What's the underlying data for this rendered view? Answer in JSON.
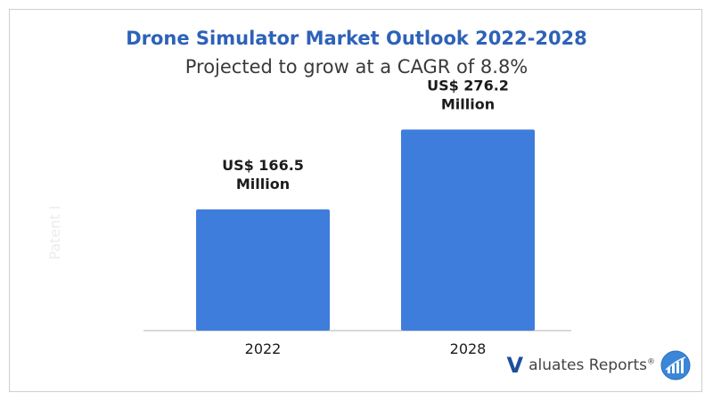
{
  "title": "Drone Simulator Market Outlook 2022-2028",
  "subtitle": "Projected to grow at a CAGR of 8.8%",
  "watermark": "Patent I",
  "logo": {
    "v": "V",
    "text": "aluates Reports",
    "reg": "®",
    "emblem_icon": "chart-globe-icon"
  },
  "colors": {
    "title": "#2d62b8",
    "bar": "#3f7ddc",
    "axis": "#b0b0b0"
  },
  "chart_data": {
    "type": "bar",
    "categories": [
      "2022",
      "2028"
    ],
    "values": [
      166.5,
      276.2
    ],
    "data_labels": [
      [
        "US$ 166.5",
        "Million"
      ],
      [
        "US$ 276.2",
        "Million"
      ]
    ],
    "unit": "US$ Million",
    "title": "Drone Simulator Market Outlook 2022-2028",
    "xlabel": "",
    "ylabel": "",
    "ylim": [
      0,
      300
    ],
    "grid": false,
    "legend": "none"
  }
}
